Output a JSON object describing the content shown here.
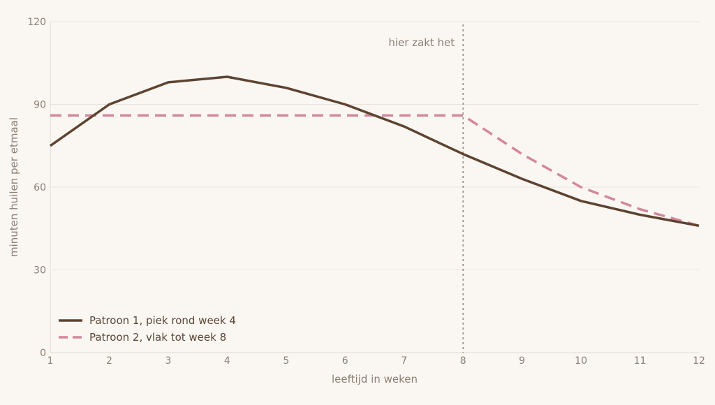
{
  "chart_data": {
    "type": "line",
    "title": "",
    "xlabel": "leeftijd in weken",
    "ylabel": "minuten huilen per etmaal",
    "xlim": [
      1,
      12
    ],
    "ylim": [
      0,
      120
    ],
    "x_ticks": [
      1,
      2,
      3,
      4,
      5,
      6,
      7,
      8,
      9,
      10,
      11,
      12
    ],
    "y_ticks": [
      0,
      30,
      60,
      90,
      120
    ],
    "grid": "horizontal",
    "legend_position": "bottom-left",
    "series": [
      {
        "name": "Patroon 1, piek rond week 4",
        "color": "#5e4330",
        "style": "solid",
        "x": [
          1,
          2,
          3,
          4,
          5,
          6,
          7,
          8,
          9,
          10,
          11,
          12
        ],
        "y": [
          75,
          90,
          98,
          100,
          96,
          90,
          82,
          72,
          63,
          55,
          50,
          46
        ]
      },
      {
        "name": "Patroon 2, vlak tot week 8",
        "color": "#d4879c",
        "style": "dashed",
        "x": [
          1,
          2,
          3,
          4,
          5,
          6,
          7,
          8,
          9,
          10,
          11,
          12
        ],
        "y": [
          86,
          86,
          86,
          86,
          86,
          86,
          86,
          86,
          72,
          60,
          52,
          46
        ]
      }
    ],
    "annotations": [
      {
        "type": "vline",
        "x": 8,
        "text": "hier zakt het",
        "color": "#8c7f72"
      }
    ]
  }
}
